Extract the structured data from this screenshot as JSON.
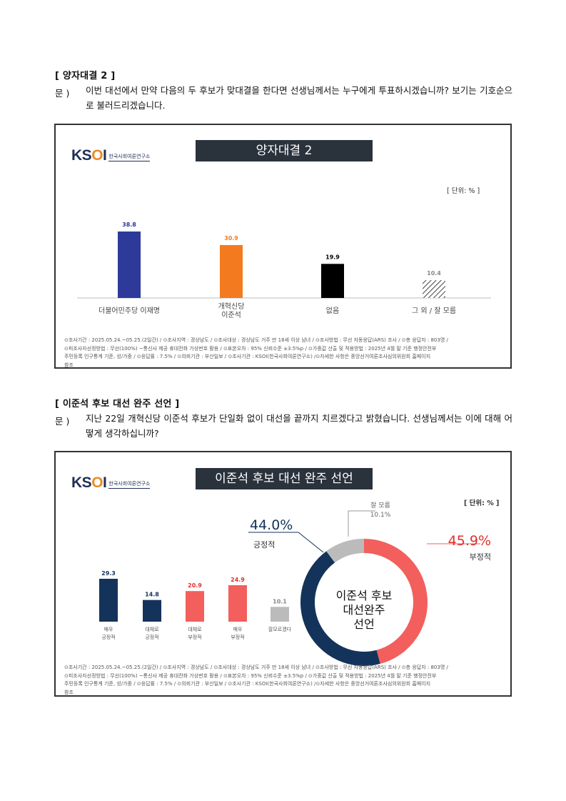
{
  "section1": {
    "title": "[ 양자대결 2 ]",
    "q_label": "문 )",
    "question": "이번 대선에서 만약 다음의 두 후보가 맞대결을 한다면 선생님께서는 누구에게 투표하시겠습니까? 보기는 기호순으로 불러드리겠습니다.",
    "chart": {
      "logo": "KSOI",
      "logo_sub": "한국사회여론연구소",
      "banner": "양자대결 2",
      "unit": "[ 단위: % ]",
      "footer": [
        "⊙조사기간 : 2025.05.24.~05.25.(2일간) / ⊙조사지역 : 경상남도 / ⊙조사대상 : 경상남도 거주 만 18세 이상 남녀 / ⊙조사방법 : 무선 자동응답(ARS) 조사 / ⊙총 응답자 : 803명 /",
        "⊙피조사자선정방법 : 무선(100%) ~통신사 제공 휴대전화 가상번호 활용 / ⊙표본오차 : 95% 신뢰수준 ±3.5%p / ⊙가중값 산출 및 적용방법 : 2025년 4월 말 기준 행정안전부",
        "주민등록 인구통계 기준, 성/가중 / ⊙응답률 : 7.5% / ⊙의뢰기관 : 부산일보 / ⊙조사기관 : KSOI(한국사회여론연구소) /⊙자세한 사항은 중앙선거여론조사심의위원회 홈페이지",
        "참조"
      ]
    }
  },
  "section2": {
    "title": "[ 이준석 후보 대선 완주 선언 ]",
    "q_label": "문 )",
    "question": "지난 22일 개혁신당 이준석 후보가 단일화 없이 대선을 끝까지 치르겠다고 밝혔습니다. 선생님께서는 이에 대해 어떻게 생각하십니까?",
    "chart": {
      "logo": "KSOI",
      "logo_sub": "한국사회여론연구소",
      "banner": "이준석 후보 대선 완주 선언",
      "unit": "[ 단위: % ]",
      "donut_center": [
        "이준석 후보",
        "대선완주",
        "선언"
      ],
      "donut_labels": {
        "positive_value": "44.0%",
        "positive_label": "긍정적",
        "negative_value": "45.9%",
        "negative_label": "부정적",
        "unknown_label": "잘 모름",
        "unknown_value": "10.1%"
      },
      "footer": [
        "⊙조사기간 : 2025.05.24.~05.25.(2일간) / ⊙조사지역 : 경상남도 / ⊙조사대상 : 경상남도 거주 만 18세 이상 남녀 / ⊙조사방법 : 무선 자동응답(ARS) 조사 / ⊙총 응답자 : 803명 /",
        "⊙피조사자선정방법 : 무선(100%) ~통신사 제공 휴대전화 가상번호 활용 / ⊙표본오차 : 95% 신뢰수준 ±3.5%p / ⊙가중값 산출 및 적용방법 : 2025년 4월 말 기준 행정안전부",
        "주민등록 인구통계 기준, 성/가중 / ⊙응답률 : 7.5% / ⊙의뢰기관 : 부산일보 / ⊙조사기관 : KSOI(한국사회여론연구소) /⊙자세한 사항은 중앙선거여론조사심의위원회 홈페이지",
        "참조"
      ]
    }
  },
  "chart_data": [
    {
      "type": "bar",
      "title": "양자대결 2",
      "categories": [
        [
          "더불어민주당 이재명"
        ],
        [
          "개혁신당",
          "이준석"
        ],
        [
          "없음"
        ],
        [
          "그 외 / 잘 모름"
        ]
      ],
      "values": [
        38.8,
        30.9,
        19.9,
        10.4
      ],
      "value_labels": [
        "38.8",
        "30.9",
        "19.9",
        "10.4"
      ],
      "colors": [
        "#2d3a9a",
        "#f47a1f",
        "#000000",
        "hatch"
      ],
      "label_colors": [
        "#2d3a9a",
        "#f47a1f",
        "#000000",
        "#888888"
      ],
      "ylim": [
        0,
        38.8
      ]
    },
    {
      "type": "bar",
      "title": "이준석 후보 대선 완주 선언",
      "categories": [
        [
          "매우",
          "긍정적"
        ],
        [
          "대체로",
          "긍정적"
        ],
        [
          "대체로",
          "부정적"
        ],
        [
          "매우",
          "부정적"
        ],
        [
          "잘모르겠다"
        ]
      ],
      "values": [
        29.3,
        14.8,
        20.9,
        24.9,
        10.1
      ],
      "value_labels": [
        "29.3",
        "14.8",
        "20.9",
        "24.9",
        "10.1"
      ],
      "colors": [
        "#14335a",
        "#14335a",
        "#f25f5c",
        "#f25f5c",
        "#bbbbbb"
      ],
      "label_colors": [
        "#14335a",
        "#14335a",
        "#e0302c",
        "#e0302c",
        "#888888"
      ],
      "ylim": [
        0,
        29.3
      ]
    },
    {
      "type": "pie",
      "title": "이준석 후보 대선 완주 선언",
      "categories": [
        "부정적",
        "긍정적",
        "잘 모름"
      ],
      "values": [
        45.9,
        44.0,
        10.1
      ],
      "colors": [
        "#f25f5c",
        "#14335a",
        "#bbbbbb"
      ]
    }
  ]
}
